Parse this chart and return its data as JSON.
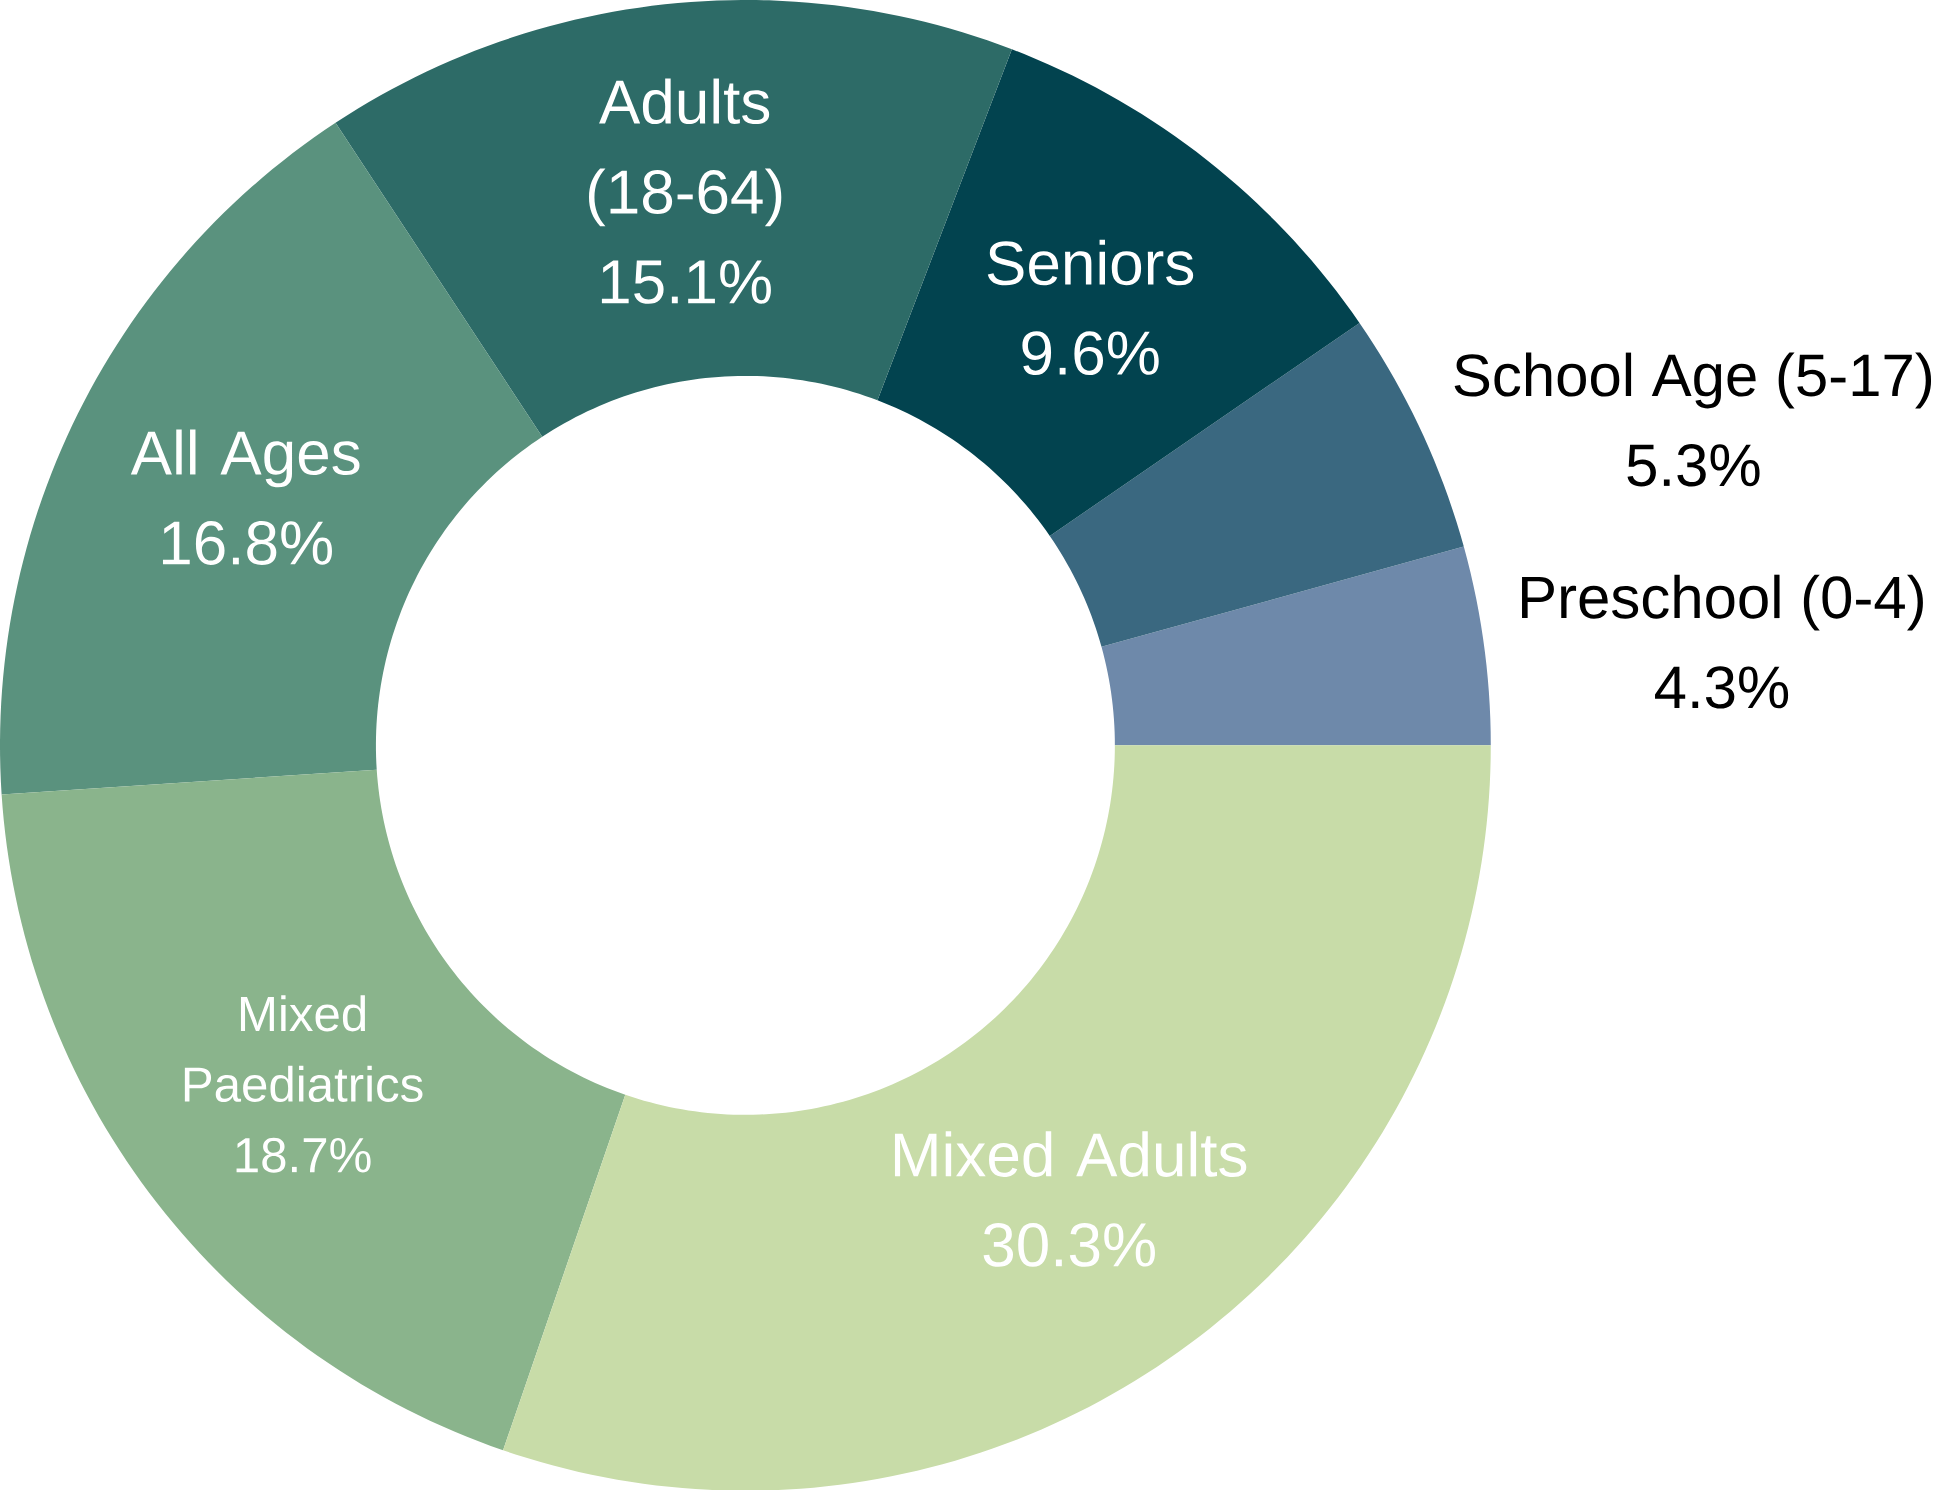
{
  "chart_data": {
    "type": "donut",
    "categories": [
      "Preschool (0-4)",
      "School Age (5-17)",
      "Seniors",
      "Adults (18-64)",
      "All Ages",
      "Mixed Paediatrics",
      "Mixed Adults"
    ],
    "values": [
      4.3,
      5.3,
      9.6,
      15.1,
      16.8,
      18.7,
      30.3
    ],
    "colors": [
      "#6e89aa",
      "#3a6880",
      "#02434f",
      "#2d6b67",
      "#5a927e",
      "#8ab48c",
      "#c8dca8"
    ],
    "value_labels": [
      "4.3%",
      "5.3%",
      "9.6%",
      "15.1%",
      "16.8%",
      "18.7%",
      "30.3%"
    ]
  }
}
